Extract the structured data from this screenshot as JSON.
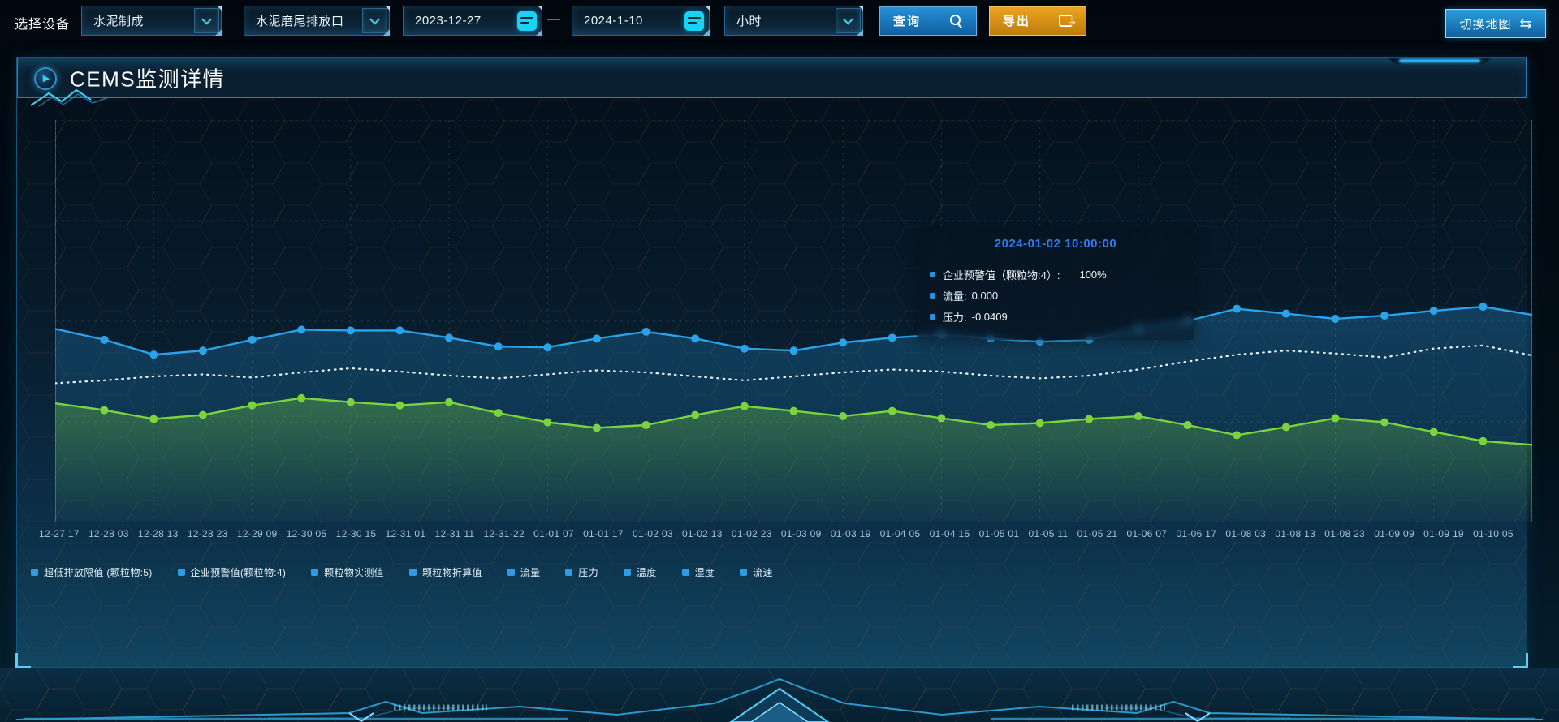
{
  "toolbar": {
    "device_label": "选择设备",
    "select_process": "水泥制成",
    "select_outlet": "水泥磨尾排放口",
    "date_start": "2023-12-27",
    "date_separator": "—",
    "date_end": "2024-1-10",
    "select_interval": "小时",
    "query_label": "查询",
    "export_label": "导出",
    "switch_map_label": "切换地图"
  },
  "icons": {
    "query": "search-icon",
    "export": "export-icon",
    "switch_map": "swap-icon",
    "swap_glyph": "⇆",
    "date": "calendar-icon",
    "select": "chevron-down-icon",
    "panel": "play-icon",
    "play_glyph": "▶"
  },
  "panel": {
    "title": "CEMS监测详情"
  },
  "tooltip": {
    "title": "2024-01-02 10:00:00",
    "items": [
      {
        "label": "企业预警值（颗粒物:4）:",
        "value": "100%"
      },
      {
        "label": "流量:",
        "value": "0.000"
      },
      {
        "label": "压力:",
        "value": "-0.0409"
      }
    ]
  },
  "legend": [
    "超低排放限值 (颗粒物:5)",
    "企业预警值(颗粒物:4)",
    "颗粒物实测值",
    "颗粒物折算值",
    "流量",
    "压力",
    "温度",
    "湿度",
    "流速"
  ],
  "colors": {
    "accent_cyan": "#3ec9ef",
    "query_button": "#1a7fc0",
    "export_button": "#d99210",
    "switch_map_button": "#1d86c9",
    "series_blue": "#2aa3ea",
    "series_green": "#7ad33f",
    "series_dotted": "#eef6fb",
    "tooltip_title": "#2d7df2",
    "legend_marker": "#2f9ce2"
  },
  "chart_data": {
    "type": "line",
    "title": "CEMS监测详情",
    "xlabel": "",
    "ylabel": "",
    "ylim": [
      0,
      100
    ],
    "grid": true,
    "legend_position": "bottom",
    "x_tick_labels": [
      "12-27 17",
      "12-28 03",
      "12-28 13",
      "12-28 23",
      "12-29 09",
      "12-30 05",
      "12-30 15",
      "12-31 01",
      "12-31 11",
      "12-31-22",
      "01-01 07",
      "01-01 17",
      "01-02 03",
      "01-02 13",
      "01-02 23",
      "01-03 09",
      "01-03 19",
      "01-04 05",
      "01-04 15",
      "01-05 01",
      "01-05 11",
      "01-05 21",
      "01-06 07",
      "01-06 17",
      "01-08 03",
      "01-08 13",
      "01-08 23",
      "01-09 09",
      "01-09 19",
      "01-10 05"
    ],
    "series": [
      {
        "name": "企业预警值(颗粒物:4)",
        "color": "#2aa3ea",
        "line": "solid",
        "markers": true,
        "area": true,
        "values": [
          48.1,
          45.4,
          41.7,
          42.7,
          45.4,
          47.9,
          47.7,
          47.7,
          45.9,
          43.7,
          43.5,
          45.7,
          47.4,
          45.7,
          43.2,
          42.7,
          44.7,
          45.9,
          46.7,
          45.7,
          44.9,
          45.4,
          48.1,
          50.1,
          53.1,
          51.9,
          50.6,
          51.4,
          52.6,
          53.6,
          51.6
        ]
      },
      {
        "name": "流量",
        "color": "#eef6fb",
        "line": "dotted",
        "markers": false,
        "area": false,
        "values": [
          34.6,
          35.3,
          36.3,
          36.8,
          36.0,
          37.3,
          38.3,
          37.5,
          36.5,
          35.8,
          36.8,
          37.8,
          37.3,
          36.3,
          35.3,
          36.3,
          37.3,
          38.0,
          37.5,
          36.5,
          35.8,
          36.5,
          38.0,
          40.0,
          41.7,
          42.7,
          42.0,
          41.0,
          43.2,
          44.0,
          41.5
        ]
      },
      {
        "name": "压力",
        "color": "#7ad33f",
        "line": "solid",
        "markers": true,
        "area": true,
        "values": [
          29.6,
          27.9,
          25.7,
          26.7,
          29.1,
          30.9,
          29.9,
          29.1,
          29.9,
          27.2,
          24.9,
          23.5,
          24.2,
          26.7,
          28.9,
          27.7,
          26.4,
          27.7,
          25.9,
          24.2,
          24.7,
          25.7,
          26.4,
          24.2,
          21.7,
          23.7,
          25.9,
          24.9,
          22.5,
          20.2,
          19.3
        ]
      }
    ],
    "hover_point": {
      "x": "2024-01-02 10:00:00",
      "readings": {
        "企业预警值(颗粒物:4)": "100%",
        "流量": "0.000",
        "压力": "-0.0409"
      }
    }
  }
}
